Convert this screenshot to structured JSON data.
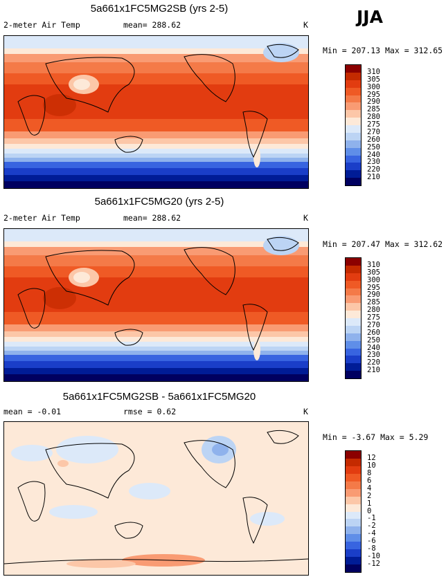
{
  "season": "JJA",
  "panels": [
    {
      "title": "5a661x1FC5MG2SB (yrs 2-5)",
      "variable": "2-meter Air Temp",
      "stat": "mean= 288.62",
      "units": "K",
      "minmax": "Min = 207.13 Max = 312.65",
      "levels": [
        "310",
        "305",
        "300",
        "295",
        "290",
        "285",
        "280",
        "275",
        "270",
        "260",
        "250",
        "240",
        "230",
        "220",
        "210"
      ],
      "colors": [
        "#8b0000",
        "#c42a00",
        "#e23c10",
        "#ef5a25",
        "#f47a48",
        "#f99b73",
        "#fcc7a8",
        "#fde9d8",
        "#dce9f9",
        "#bcd4f4",
        "#8fb2ec",
        "#5f8ee8",
        "#3864e0",
        "#1a3ec8",
        "#001c96",
        "#000060"
      ]
    },
    {
      "title": "5a661x1FC5MG20 (yrs 2-5)",
      "variable": "2-meter Air Temp",
      "stat": "mean= 288.62",
      "units": "K",
      "minmax": "Min = 207.47 Max = 312.62",
      "levels": [
        "310",
        "305",
        "300",
        "295",
        "290",
        "285",
        "280",
        "275",
        "270",
        "260",
        "250",
        "240",
        "230",
        "220",
        "210"
      ],
      "colors": [
        "#8b0000",
        "#c42a00",
        "#e23c10",
        "#ef5a25",
        "#f47a48",
        "#f99b73",
        "#fcc7a8",
        "#fde9d8",
        "#dce9f9",
        "#bcd4f4",
        "#8fb2ec",
        "#5f8ee8",
        "#3864e0",
        "#1a3ec8",
        "#001c96",
        "#000060"
      ]
    },
    {
      "title": "5a661x1FC5MG2SB - 5a661x1FC5MG20",
      "stat": "mean =  -0.01",
      "rmse": "rmse =   0.62",
      "units": "K",
      "minmax": "Min =  -3.67 Max =   5.29",
      "levels": [
        "12",
        "10",
        "8",
        "6",
        "4",
        "2",
        "1",
        "0",
        "-1",
        "-2",
        "-4",
        "-6",
        "-8",
        "-10",
        "-12"
      ],
      "colors": [
        "#8b0000",
        "#c42a00",
        "#e23c10",
        "#ef5a25",
        "#f47a48",
        "#f99b73",
        "#fcc7a8",
        "#fde9d8",
        "#dce9f9",
        "#bcd4f4",
        "#8fb2ec",
        "#5f8ee8",
        "#3864e0",
        "#1a3ec8",
        "#001c96",
        "#000060"
      ]
    }
  ],
  "chart_data": [
    {
      "type": "heatmap",
      "title": "5a661x1FC5MG2SB (yrs 2-5)",
      "variable": "2-meter Air Temp",
      "units": "K",
      "mean": 288.62,
      "min": 207.13,
      "max": 312.65,
      "levels": [
        310,
        305,
        300,
        295,
        290,
        285,
        280,
        275,
        270,
        260,
        250,
        240,
        230,
        220,
        210
      ]
    },
    {
      "type": "heatmap",
      "title": "5a661x1FC5MG20 (yrs 2-5)",
      "variable": "2-meter Air Temp",
      "units": "K",
      "mean": 288.62,
      "min": 207.47,
      "max": 312.62,
      "levels": [
        310,
        305,
        300,
        295,
        290,
        285,
        280,
        275,
        270,
        260,
        250,
        240,
        230,
        220,
        210
      ]
    },
    {
      "type": "heatmap",
      "title": "5a661x1FC5MG2SB - 5a661x1FC5MG20",
      "units": "K",
      "mean": -0.01,
      "rmse": 0.62,
      "min": -3.67,
      "max": 5.29,
      "levels": [
        12,
        10,
        8,
        6,
        4,
        2,
        1,
        0,
        -1,
        -2,
        -4,
        -6,
        -8,
        -10,
        -12
      ]
    }
  ]
}
